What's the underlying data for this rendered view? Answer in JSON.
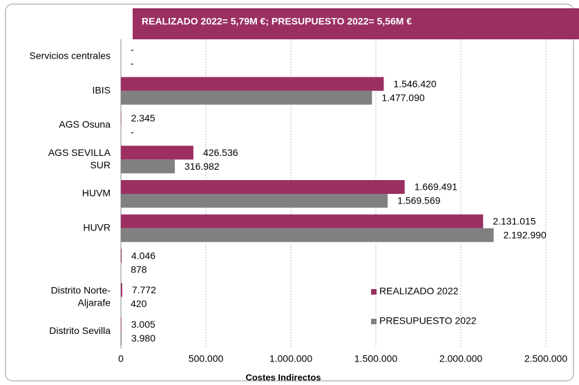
{
  "chart_data": {
    "type": "hbar",
    "title": "REALIZADO  2022= 5,79M €; PRESUPUESTO 2022= 5,56M €",
    "x_label": "Costes Indirectos",
    "categories": [
      "Servicios centrales",
      "IBIS",
      "AGS Osuna",
      "AGS SEVILLA\nSUR",
      "HUVM",
      "HUVR",
      null,
      "Distrito Norte-\nAljarafe",
      "Distrito Sevilla"
    ],
    "series": [
      {
        "name": "REALIZADO 2022",
        "color": "#9b2f62",
        "values": [
          0,
          1546420,
          2345,
          426536,
          1669491,
          2131015,
          4046,
          7772,
          3005
        ],
        "value_labels": [
          "-",
          "1.546.420",
          "2.345",
          "426.536",
          "1.669.491",
          "2.131.015",
          "4.046",
          "7.772",
          "3.005"
        ]
      },
      {
        "name": "PRESUPUESTO 2022",
        "color": "#808080",
        "values": [
          0,
          1477090,
          0,
          316982,
          1569569,
          2192990,
          878,
          420,
          3980
        ],
        "value_labels": [
          "-",
          "1.477.090",
          "-",
          "316.982",
          "1.569.569",
          "2.192.990",
          "878",
          "420",
          "3.980"
        ]
      }
    ],
    "xlim": [
      0,
      2500000
    ],
    "xticks": [
      0,
      {
        "value": 500000,
        "label": "500.000"
      },
      {
        "value": 1000000,
        "label": "1.000.000"
      },
      {
        "value": 1500000,
        "label": "1.500.000"
      },
      {
        "value": 2000000,
        "label": "2.000.000"
      },
      {
        "value": 2500000,
        "label": "2.500.000"
      }
    ],
    "grid": true,
    "legend": "lower-middle"
  }
}
